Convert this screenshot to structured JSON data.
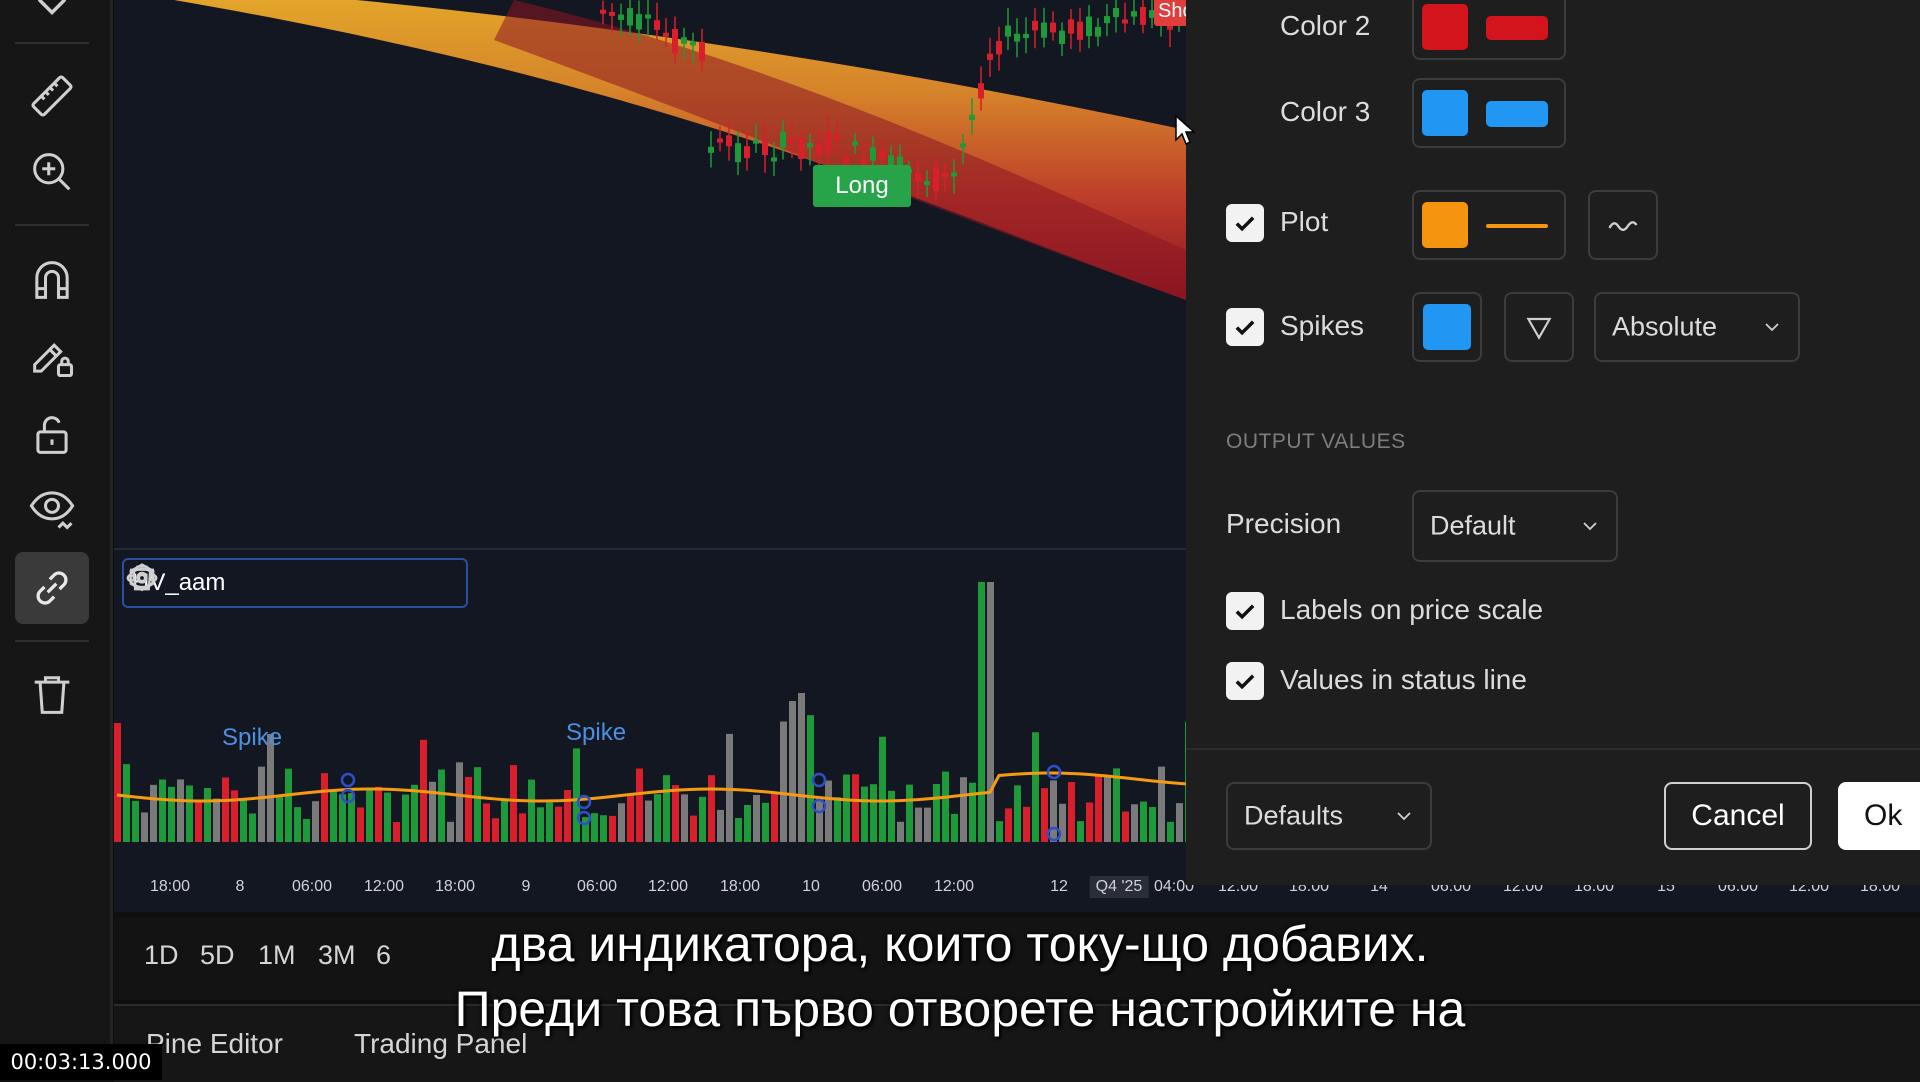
{
  "legend": {
    "title": "HV_aam",
    "icons": [
      "eye-icon",
      "gear-icon",
      "trash-icon",
      "more-icon"
    ]
  },
  "chart": {
    "labels": {
      "long": "Long",
      "short": "Sho"
    },
    "spike_labels": [
      "Spike",
      "Spike"
    ],
    "time_axis": [
      "18:00",
      "8",
      "06:00",
      "12:00",
      "18:00",
      "9",
      "06:00",
      "12:00",
      "18:00",
      "10",
      "06:00",
      "12:00",
      "12",
      "Q4 '25",
      "04:00",
      "12:00",
      "18:00",
      "14",
      "06:00",
      "12:00",
      "18:00",
      "15",
      "06:00",
      "12:00",
      "18:00"
    ],
    "colors": {
      "up": "#1f9a3a",
      "down": "#d81f2b",
      "neutral": "#7a7a7a",
      "ma": "#f59b12",
      "spike": "#2e4fcc"
    }
  },
  "bottom_toolbar": {
    "ranges": [
      "1D",
      "5D",
      "1M",
      "3M",
      "6"
    ],
    "tabs": [
      "Pine Editor",
      "Trading Panel"
    ]
  },
  "dialog": {
    "color2_label": "Color 2",
    "color3_label": "Color 3",
    "plot_label": "Plot",
    "spikes_label": "Spikes",
    "spikes_mode": "Absolute",
    "output_values_header": "OUTPUT VALUES",
    "precision_label": "Precision",
    "precision_value": "Default",
    "labels_on_price_scale": "Labels on price scale",
    "values_in_status_line": "Values in status line",
    "defaults_label": "Defaults",
    "cancel_label": "Cancel",
    "ok_label": "Ok",
    "colors": {
      "color2": "#d4141c",
      "color3": "#2196f3",
      "plot": "#f5940f",
      "spikes": "#2196f3"
    }
  },
  "subtitles": {
    "line1": "два индикатора, които току-що добавих.",
    "line2": "Преди това първо отворете настройките на"
  },
  "video_timestamp": "00:03:13.000"
}
